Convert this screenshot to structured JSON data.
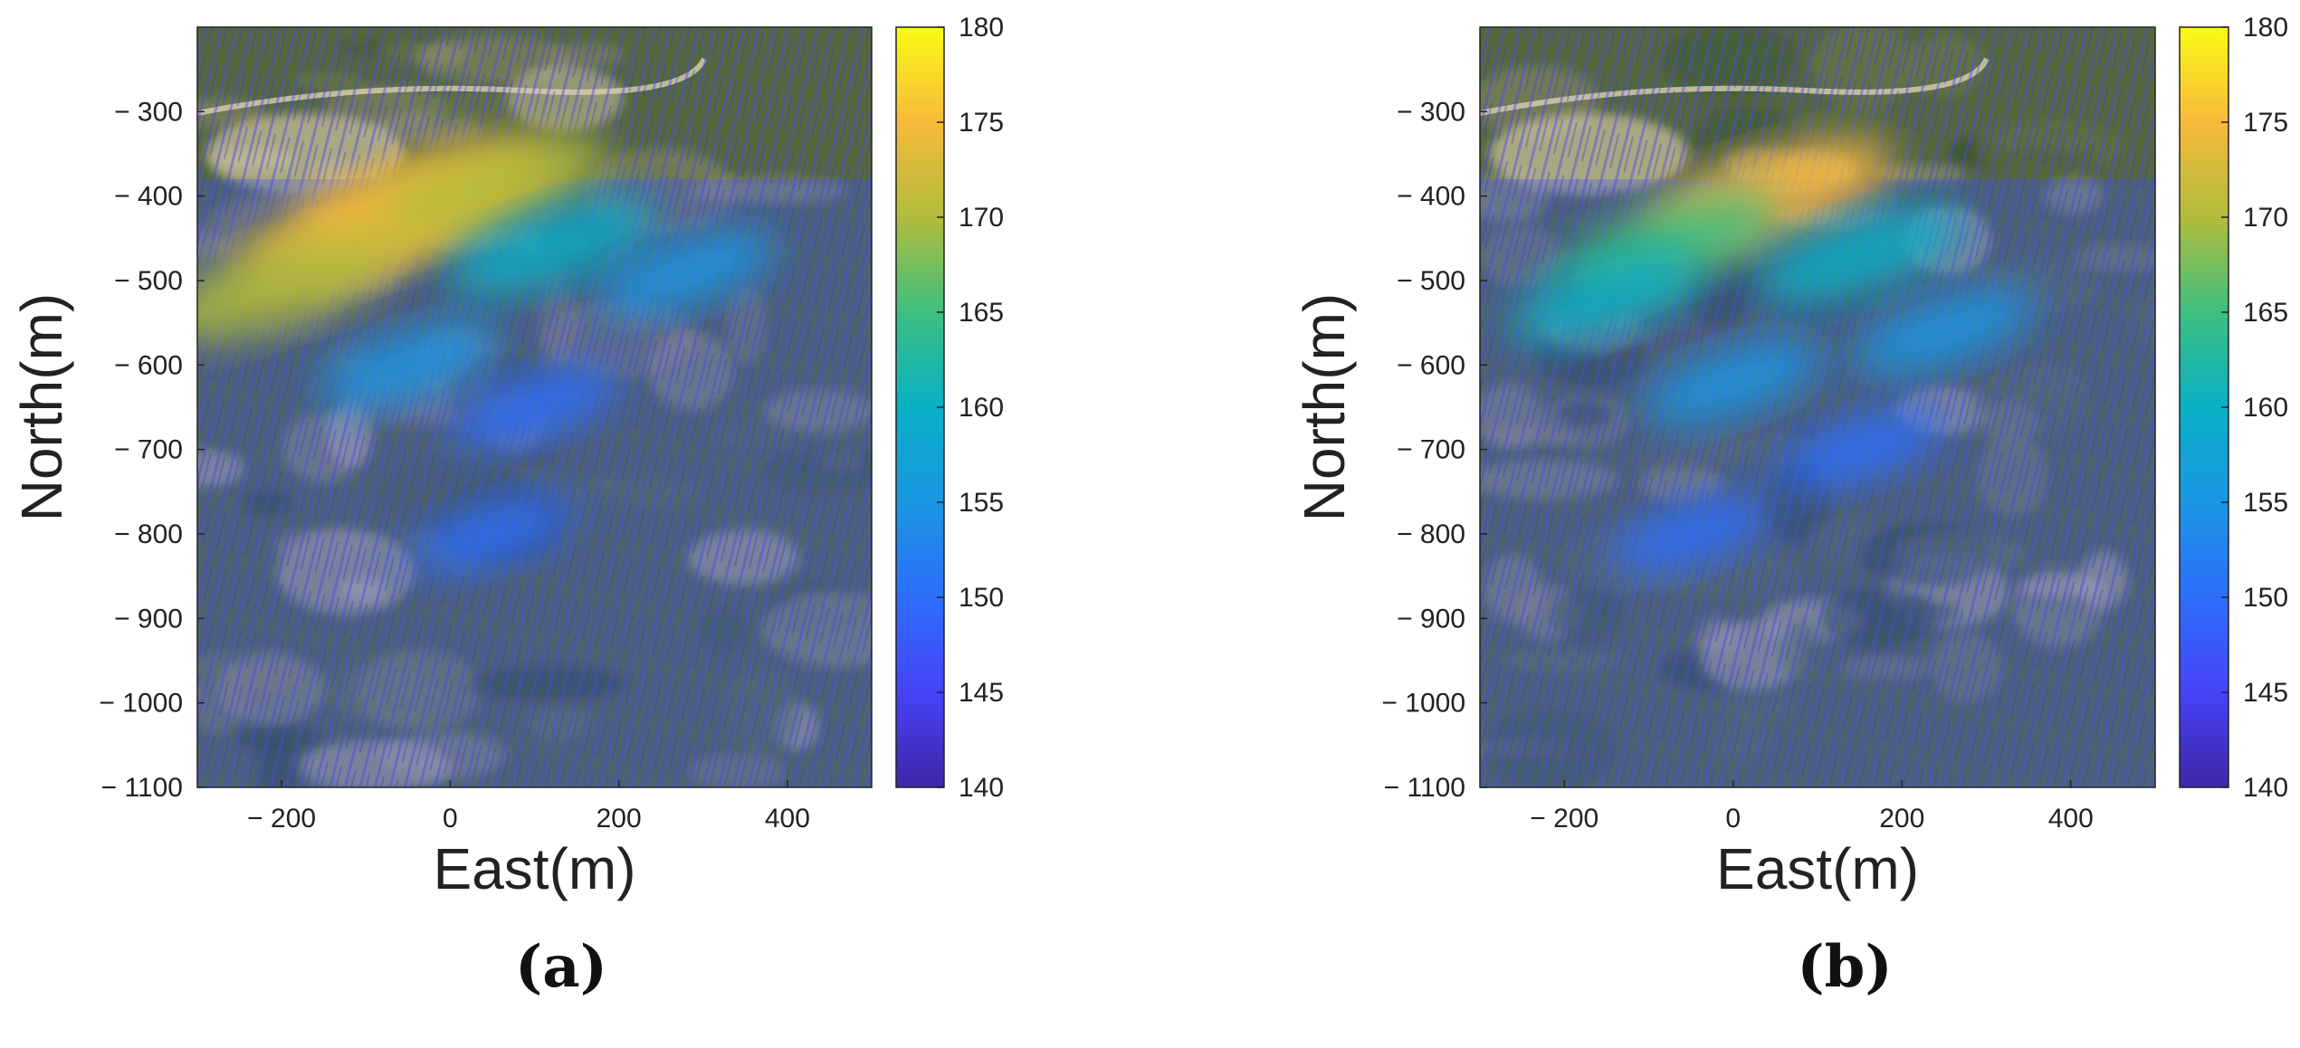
{
  "chart_data": [
    {
      "type": "heatmap",
      "panel_label": "(a)",
      "xlabel": "East(m)",
      "ylabel": "North(m)",
      "xlim": [
        -300,
        500
      ],
      "ylim": [
        -1100,
        -200
      ],
      "xticks": [
        -200,
        0,
        200,
        400
      ],
      "xtick_labels": [
        "− 200",
        "0",
        "200",
        "400"
      ],
      "yticks": [
        -300,
        -400,
        -500,
        -600,
        -700,
        -800,
        -900,
        -1000,
        -1100
      ],
      "ytick_labels": [
        "− 300",
        "− 400",
        "− 500",
        "− 600",
        "− 700",
        "− 800",
        "− 900",
        "− 1000",
        "− 1100"
      ],
      "colorbar": {
        "min": 140,
        "max": 180,
        "ticks": [
          140,
          145,
          150,
          155,
          160,
          165,
          170,
          175,
          180
        ],
        "tick_labels": [
          "140",
          "145",
          "150",
          "155",
          "160",
          "165",
          "170",
          "175",
          "180"
        ],
        "colormap": "parula"
      },
      "background": "satellite-imagery",
      "hotspots": [
        {
          "x": -100,
          "y": -440,
          "value": 176
        },
        {
          "x": -30,
          "y": -405,
          "value": 174
        },
        {
          "x": -200,
          "y": -505,
          "value": 170
        },
        {
          "x": 50,
          "y": -390,
          "value": 168
        },
        {
          "x": 120,
          "y": -460,
          "value": 162
        },
        {
          "x": 280,
          "y": -490,
          "value": 155
        },
        {
          "x": -50,
          "y": -600,
          "value": 155
        },
        {
          "x": 100,
          "y": -650,
          "value": 152
        },
        {
          "x": 50,
          "y": -800,
          "value": 150
        }
      ]
    },
    {
      "type": "heatmap",
      "panel_label": "(b)",
      "xlabel": "East(m)",
      "ylabel": "North(m)",
      "xlim": [
        -300,
        500
      ],
      "ylim": [
        -1100,
        -200
      ],
      "xticks": [
        -200,
        0,
        200,
        400
      ],
      "xtick_labels": [
        "− 200",
        "0",
        "200",
        "400"
      ],
      "yticks": [
        -300,
        -400,
        -500,
        -600,
        -700,
        -800,
        -900,
        -1000,
        -1100
      ],
      "ytick_labels": [
        "− 300",
        "− 400",
        "− 500",
        "− 600",
        "− 700",
        "− 800",
        "− 900",
        "− 1000",
        "− 1100"
      ],
      "colorbar": {
        "min": 140,
        "max": 180,
        "ticks": [
          140,
          145,
          150,
          155,
          160,
          165,
          170,
          175,
          180
        ],
        "tick_labels": [
          "140",
          "145",
          "150",
          "155",
          "160",
          "165",
          "170",
          "175",
          "180"
        ],
        "colormap": "parula"
      },
      "background": "satellite-imagery",
      "hotspots": [
        {
          "x": 40,
          "y": -400,
          "value": 173
        },
        {
          "x": -80,
          "y": -460,
          "value": 166
        },
        {
          "x": 150,
          "y": -470,
          "value": 162
        },
        {
          "x": -150,
          "y": -520,
          "value": 158
        },
        {
          "x": 250,
          "y": -560,
          "value": 156
        },
        {
          "x": 0,
          "y": -620,
          "value": 155
        },
        {
          "x": 150,
          "y": -700,
          "value": 152
        },
        {
          "x": -50,
          "y": -800,
          "value": 150
        }
      ]
    }
  ]
}
